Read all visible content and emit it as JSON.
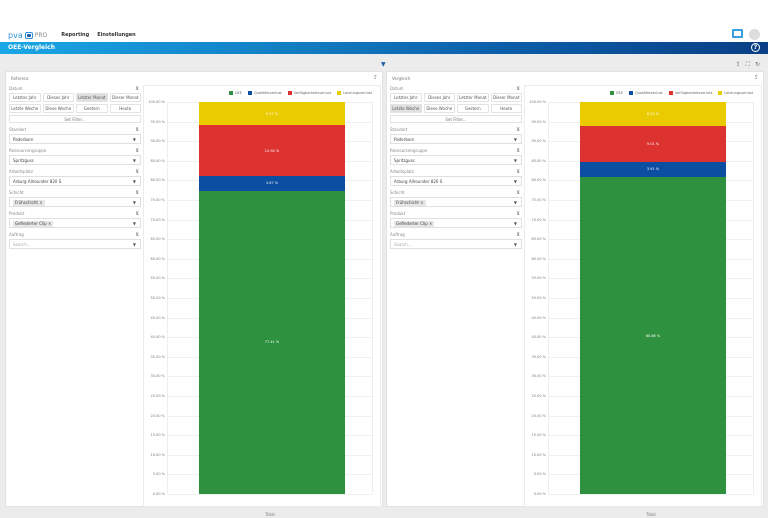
{
  "app": {
    "logo": "pva",
    "logo_suffix": "PRO",
    "nav": [
      "Reporting",
      "Einstellungen"
    ],
    "page_title": "OEE-Vergleich",
    "help": "?"
  },
  "colors": {
    "OEE": "#2e9140",
    "Qualitätsverlust": "#0b4ea2",
    "Verfügbarkeitsverlust": "#dc3330",
    "Leistungsverlust": "#eacb00"
  },
  "legend": [
    "OEE",
    "Qualitätsverlust",
    "Verfügbarkeitsverlust",
    "Leistungsverlust"
  ],
  "panels": [
    {
      "title": "Referenz",
      "filters": {
        "datum_label": "Datum",
        "date_buttons": [
          "Letztes Jahr",
          "Dieses Jahr",
          "Letzter Monat",
          "Dieser Monat",
          "Letzte Woche",
          "Diese Woche",
          "Gestern",
          "Heute"
        ],
        "selected": "Letzter Monat",
        "set_filter": "Set Filter...",
        "fields": [
          {
            "label": "Standort",
            "value": "Paderborn"
          },
          {
            "label": "Ressourcengruppe",
            "value": "Spritzguss"
          },
          {
            "label": "Arbeitsplatz",
            "value": "Arburg Allrounder 820 S"
          },
          {
            "label": "Schicht",
            "tag": "Frühschicht ×"
          },
          {
            "label": "Produkt",
            "tag": "Gefiederter Clip ×"
          },
          {
            "label": "Auftrag",
            "placeholder": "Search..."
          }
        ]
      },
      "chart_data": {
        "type": "bar",
        "stacked": true,
        "categories": [
          "Total"
        ],
        "ylim": [
          0,
          100
        ],
        "ytick_step": 5,
        "grid": true,
        "legend": "top-right",
        "series": [
          {
            "name": "OEE",
            "values": [
              77.41
            ]
          },
          {
            "name": "Qualitätsverlust",
            "values": [
              3.67
            ]
          },
          {
            "name": "Verfügbarkeitsverlust",
            "values": [
              12.94
            ]
          },
          {
            "name": "Leistungsverlust",
            "values": [
              5.97
            ]
          }
        ]
      }
    },
    {
      "title": "Vergleich",
      "filters": {
        "datum_label": "Datum",
        "date_buttons": [
          "Letztes Jahr",
          "Dieses Jahr",
          "Letzter Monat",
          "Dieser Monat",
          "Letzte Woche",
          "Diese Woche",
          "Gestern",
          "Heute"
        ],
        "selected": "Letzte Woche",
        "set_filter": "Set Filter...",
        "fields": [
          {
            "label": "Standort",
            "value": "Paderborn"
          },
          {
            "label": "Ressourcengruppe",
            "value": "Spritzguss"
          },
          {
            "label": "Arbeitsplatz",
            "value": "Arburg Allrounder 820 S"
          },
          {
            "label": "Schicht",
            "tag": "Frühschicht ×"
          },
          {
            "label": "Produkt",
            "tag": "Gefiederter Clip ×"
          },
          {
            "label": "Auftrag",
            "placeholder": "Search..."
          }
        ]
      },
      "chart_data": {
        "type": "bar",
        "stacked": true,
        "categories": [
          "Total"
        ],
        "ylim": [
          0,
          100
        ],
        "ytick_step": 5,
        "grid": true,
        "legend": "top-right",
        "series": [
          {
            "name": "OEE",
            "values": [
              80.86
            ]
          },
          {
            "name": "Qualitätsverlust",
            "values": [
              3.91
            ]
          },
          {
            "name": "Verfügbarkeitsverlust",
            "values": [
              9.01
            ]
          },
          {
            "name": "Leistungsverlust",
            "values": [
              6.22
            ]
          }
        ]
      }
    }
  ]
}
